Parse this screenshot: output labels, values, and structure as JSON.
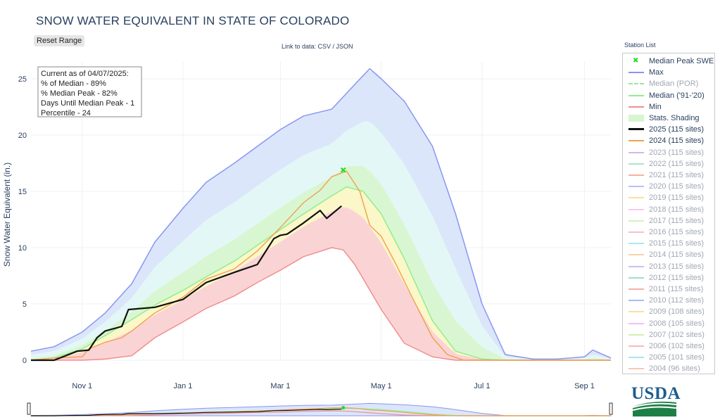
{
  "title": "SNOW WATER EQUIVALENT IN STATE OF COLORADO",
  "reset_label": "Reset Range",
  "link_note": "Link to data: CSV / JSON",
  "legend_title": "Station List",
  "usda_label": "USDA",
  "info_box": {
    "line1": "Current as of 04/07/2025:",
    "line2": "% of Median - 89%",
    "line3": "% Median Peak - 82%",
    "line4": "Days Until Median Peak - 1",
    "line5": "Percentile - 24"
  },
  "legend": [
    {
      "label": "Median Peak SWE",
      "color": "#22dd22",
      "kind": "marker",
      "active": true
    },
    {
      "label": "Max",
      "color": "#8a96f0",
      "kind": "line",
      "active": true
    },
    {
      "label": "Median (POR)",
      "color": "#9be79b",
      "kind": "dash",
      "active": false
    },
    {
      "label": "Median ('91-'20)",
      "color": "#90ee90",
      "kind": "line",
      "active": true
    },
    {
      "label": "Min",
      "color": "#f28e8e",
      "kind": "line",
      "active": true
    },
    {
      "label": "Stats. Shading",
      "color": "#d7f5d0",
      "kind": "band",
      "active": true
    },
    {
      "label": "2025 (115 sites)",
      "color": "#111111",
      "kind": "thick",
      "active": true
    },
    {
      "label": "2024 (115 sites)",
      "color": "#f0a050",
      "kind": "line",
      "active": true
    },
    {
      "label": "2023 (115 sites)",
      "color": "#d0b8f0",
      "kind": "line",
      "active": false
    },
    {
      "label": "2022 (115 sites)",
      "color": "#a8e8c8",
      "kind": "line",
      "active": false
    },
    {
      "label": "2021 (115 sites)",
      "color": "#f6b0a0",
      "kind": "line",
      "active": false
    },
    {
      "label": "2020 (115 sites)",
      "color": "#b8c0f8",
      "kind": "line",
      "active": false
    },
    {
      "label": "2019 (115 sites)",
      "color": "#fbe0a0",
      "kind": "line",
      "active": false
    },
    {
      "label": "2018 (115 sites)",
      "color": "#f8c8f0",
      "kind": "line",
      "active": false
    },
    {
      "label": "2017 (115 sites)",
      "color": "#d8f0b8",
      "kind": "line",
      "active": false
    },
    {
      "label": "2016 (115 sites)",
      "color": "#f8c0c8",
      "kind": "line",
      "active": false
    },
    {
      "label": "2015 (115 sites)",
      "color": "#a8e8f0",
      "kind": "line",
      "active": false
    },
    {
      "label": "2014 (115 sites)",
      "color": "#f8d0a8",
      "kind": "line",
      "active": false
    },
    {
      "label": "2013 (115 sites)",
      "color": "#c8c0f8",
      "kind": "line",
      "active": false
    },
    {
      "label": "2012 (115 sites)",
      "color": "#a0e0c0",
      "kind": "line",
      "active": false
    },
    {
      "label": "2011 (115 sites)",
      "color": "#f8b0a8",
      "kind": "line",
      "active": false
    },
    {
      "label": "2010 (112 sites)",
      "color": "#b0b8f8",
      "kind": "line",
      "active": false
    },
    {
      "label": "2009 (108 sites)",
      "color": "#f8e0a0",
      "kind": "line",
      "active": false
    },
    {
      "label": "2008 (105 sites)",
      "color": "#f0c0f0",
      "kind": "line",
      "active": false
    },
    {
      "label": "2007 (102 sites)",
      "color": "#d0f0b0",
      "kind": "line",
      "active": false
    },
    {
      "label": "2006 (102 sites)",
      "color": "#f8b8b8",
      "kind": "line",
      "active": false
    },
    {
      "label": "2005 (101 sites)",
      "color": "#a8e4f0",
      "kind": "line",
      "active": false
    },
    {
      "label": "2004 (96 sites)",
      "color": "#f8c8b0",
      "kind": "line",
      "active": false
    }
  ],
  "chart_data": {
    "type": "line",
    "title": "SNOW WATER EQUIVALENT IN STATE OF COLORADO",
    "xlabel": "",
    "ylabel": "Snow Water Equivalent (in.)",
    "x_ticks": [
      "Nov 1",
      "Jan 1",
      "Mar 1",
      "May 1",
      "Jul 1",
      "Sep 1"
    ],
    "x_tick_dates": [
      "2024-11-01",
      "2025-01-01",
      "2025-03-01",
      "2025-05-01",
      "2025-07-01",
      "2025-09-01"
    ],
    "x_range": [
      "2024-10-01",
      "2025-09-17"
    ],
    "y_ticks": [
      0,
      5,
      10,
      15,
      20,
      25
    ],
    "ylim": [
      0,
      26.5
    ],
    "grid": true,
    "legend_position": "right",
    "median_peak": {
      "date": "2025-04-08",
      "value": 16.9
    },
    "series": [
      {
        "name": "Max",
        "color": "#8a96f0",
        "points": [
          [
            "2024-10-01",
            0.8
          ],
          [
            "2024-10-15",
            1.2
          ],
          [
            "2024-11-01",
            2.5
          ],
          [
            "2024-11-15",
            4.2
          ],
          [
            "2024-12-01",
            6.8
          ],
          [
            "2024-12-15",
            10.5
          ],
          [
            "2025-01-01",
            13.5
          ],
          [
            "2025-01-15",
            15.8
          ],
          [
            "2025-02-01",
            17.5
          ],
          [
            "2025-02-15",
            19.0
          ],
          [
            "2025-03-01",
            20.5
          ],
          [
            "2025-03-15",
            21.7
          ],
          [
            "2025-04-01",
            22.3
          ],
          [
            "2025-04-15",
            24.5
          ],
          [
            "2025-04-24",
            25.9
          ],
          [
            "2025-05-01",
            25.0
          ],
          [
            "2025-05-15",
            23.0
          ],
          [
            "2025-06-01",
            19.0
          ],
          [
            "2025-06-15",
            13.0
          ],
          [
            "2025-07-01",
            5.0
          ],
          [
            "2025-07-15",
            0.5
          ],
          [
            "2025-08-01",
            0.1
          ],
          [
            "2025-08-15",
            0.1
          ],
          [
            "2025-09-01",
            0.3
          ],
          [
            "2025-09-06",
            0.9
          ],
          [
            "2025-09-17",
            0.2
          ]
        ]
      },
      {
        "name": "Median ('91-'20)",
        "color": "#90ee90",
        "points": [
          [
            "2024-10-01",
            0.0
          ],
          [
            "2024-10-15",
            0.2
          ],
          [
            "2024-11-01",
            1.0
          ],
          [
            "2024-11-15",
            2.2
          ],
          [
            "2024-12-01",
            3.6
          ],
          [
            "2024-12-15",
            4.9
          ],
          [
            "2025-01-01",
            6.2
          ],
          [
            "2025-01-15",
            7.4
          ],
          [
            "2025-02-01",
            8.8
          ],
          [
            "2025-02-15",
            10.2
          ],
          [
            "2025-03-01",
            11.6
          ],
          [
            "2025-03-15",
            13.0
          ],
          [
            "2025-04-01",
            14.6
          ],
          [
            "2025-04-10",
            15.4
          ],
          [
            "2025-04-20",
            15.0
          ],
          [
            "2025-05-01",
            13.0
          ],
          [
            "2025-05-15",
            9.0
          ],
          [
            "2025-06-01",
            3.5
          ],
          [
            "2025-06-15",
            0.8
          ],
          [
            "2025-07-01",
            0.1
          ],
          [
            "2025-07-15",
            0.0
          ],
          [
            "2025-09-17",
            0.0
          ]
        ]
      },
      {
        "name": "Min",
        "color": "#f28e8e",
        "points": [
          [
            "2024-10-01",
            0.0
          ],
          [
            "2024-11-01",
            0.0
          ],
          [
            "2024-11-15",
            0.1
          ],
          [
            "2024-12-01",
            0.4
          ],
          [
            "2024-12-15",
            2.0
          ],
          [
            "2025-01-01",
            3.4
          ],
          [
            "2025-01-15",
            4.6
          ],
          [
            "2025-02-01",
            5.7
          ],
          [
            "2025-02-15",
            6.9
          ],
          [
            "2025-03-01",
            8.0
          ],
          [
            "2025-03-15",
            9.2
          ],
          [
            "2025-04-01",
            10.0
          ],
          [
            "2025-04-08",
            9.8
          ],
          [
            "2025-04-15",
            8.5
          ],
          [
            "2025-05-01",
            4.5
          ],
          [
            "2025-05-15",
            1.5
          ],
          [
            "2025-06-01",
            0.3
          ],
          [
            "2025-06-15",
            0.0
          ],
          [
            "2025-09-17",
            0.0
          ]
        ]
      },
      {
        "name": "2024 (115 sites)",
        "color": "#f0a050",
        "points": [
          [
            "2024-10-01",
            0.0
          ],
          [
            "2024-10-15",
            0.2
          ],
          [
            "2024-11-01",
            0.3
          ],
          [
            "2024-11-05",
            1.0
          ],
          [
            "2024-11-15",
            1.6
          ],
          [
            "2024-11-25",
            2.0
          ],
          [
            "2024-12-01",
            2.6
          ],
          [
            "2024-12-15",
            4.2
          ],
          [
            "2025-01-01",
            5.6
          ],
          [
            "2025-01-15",
            7.2
          ],
          [
            "2025-02-01",
            8.1
          ],
          [
            "2025-02-15",
            9.7
          ],
          [
            "2025-03-01",
            11.8
          ],
          [
            "2025-03-15",
            14.0
          ],
          [
            "2025-03-25",
            15.1
          ],
          [
            "2025-04-01",
            16.3
          ],
          [
            "2025-04-10",
            16.8
          ],
          [
            "2025-04-18",
            15.0
          ],
          [
            "2025-04-24",
            12.0
          ],
          [
            "2025-05-01",
            11.0
          ],
          [
            "2025-05-10",
            8.5
          ],
          [
            "2025-05-20",
            5.5
          ],
          [
            "2025-06-01",
            2.0
          ],
          [
            "2025-06-10",
            0.5
          ],
          [
            "2025-06-20",
            0.0
          ],
          [
            "2025-09-17",
            0.0
          ]
        ]
      },
      {
        "name": "2025 (115 sites)",
        "color": "#111111",
        "points": [
          [
            "2024-10-01",
            0.0
          ],
          [
            "2024-10-15",
            0.0
          ],
          [
            "2024-10-22",
            0.4
          ],
          [
            "2024-10-29",
            0.8
          ],
          [
            "2024-11-05",
            0.9
          ],
          [
            "2024-11-10",
            2.0
          ],
          [
            "2024-11-15",
            2.6
          ],
          [
            "2024-11-25",
            3.0
          ],
          [
            "2024-11-29",
            4.5
          ],
          [
            "2024-12-15",
            4.7
          ],
          [
            "2025-01-01",
            5.4
          ],
          [
            "2025-01-15",
            6.9
          ],
          [
            "2025-02-01",
            7.8
          ],
          [
            "2025-02-15",
            8.5
          ],
          [
            "2025-02-25",
            10.8
          ],
          [
            "2025-03-01",
            11.1
          ],
          [
            "2025-03-05",
            11.2
          ],
          [
            "2025-03-15",
            12.2
          ],
          [
            "2025-03-25",
            13.3
          ],
          [
            "2025-03-29",
            12.6
          ],
          [
            "2025-04-07",
            13.7
          ]
        ]
      }
    ]
  }
}
